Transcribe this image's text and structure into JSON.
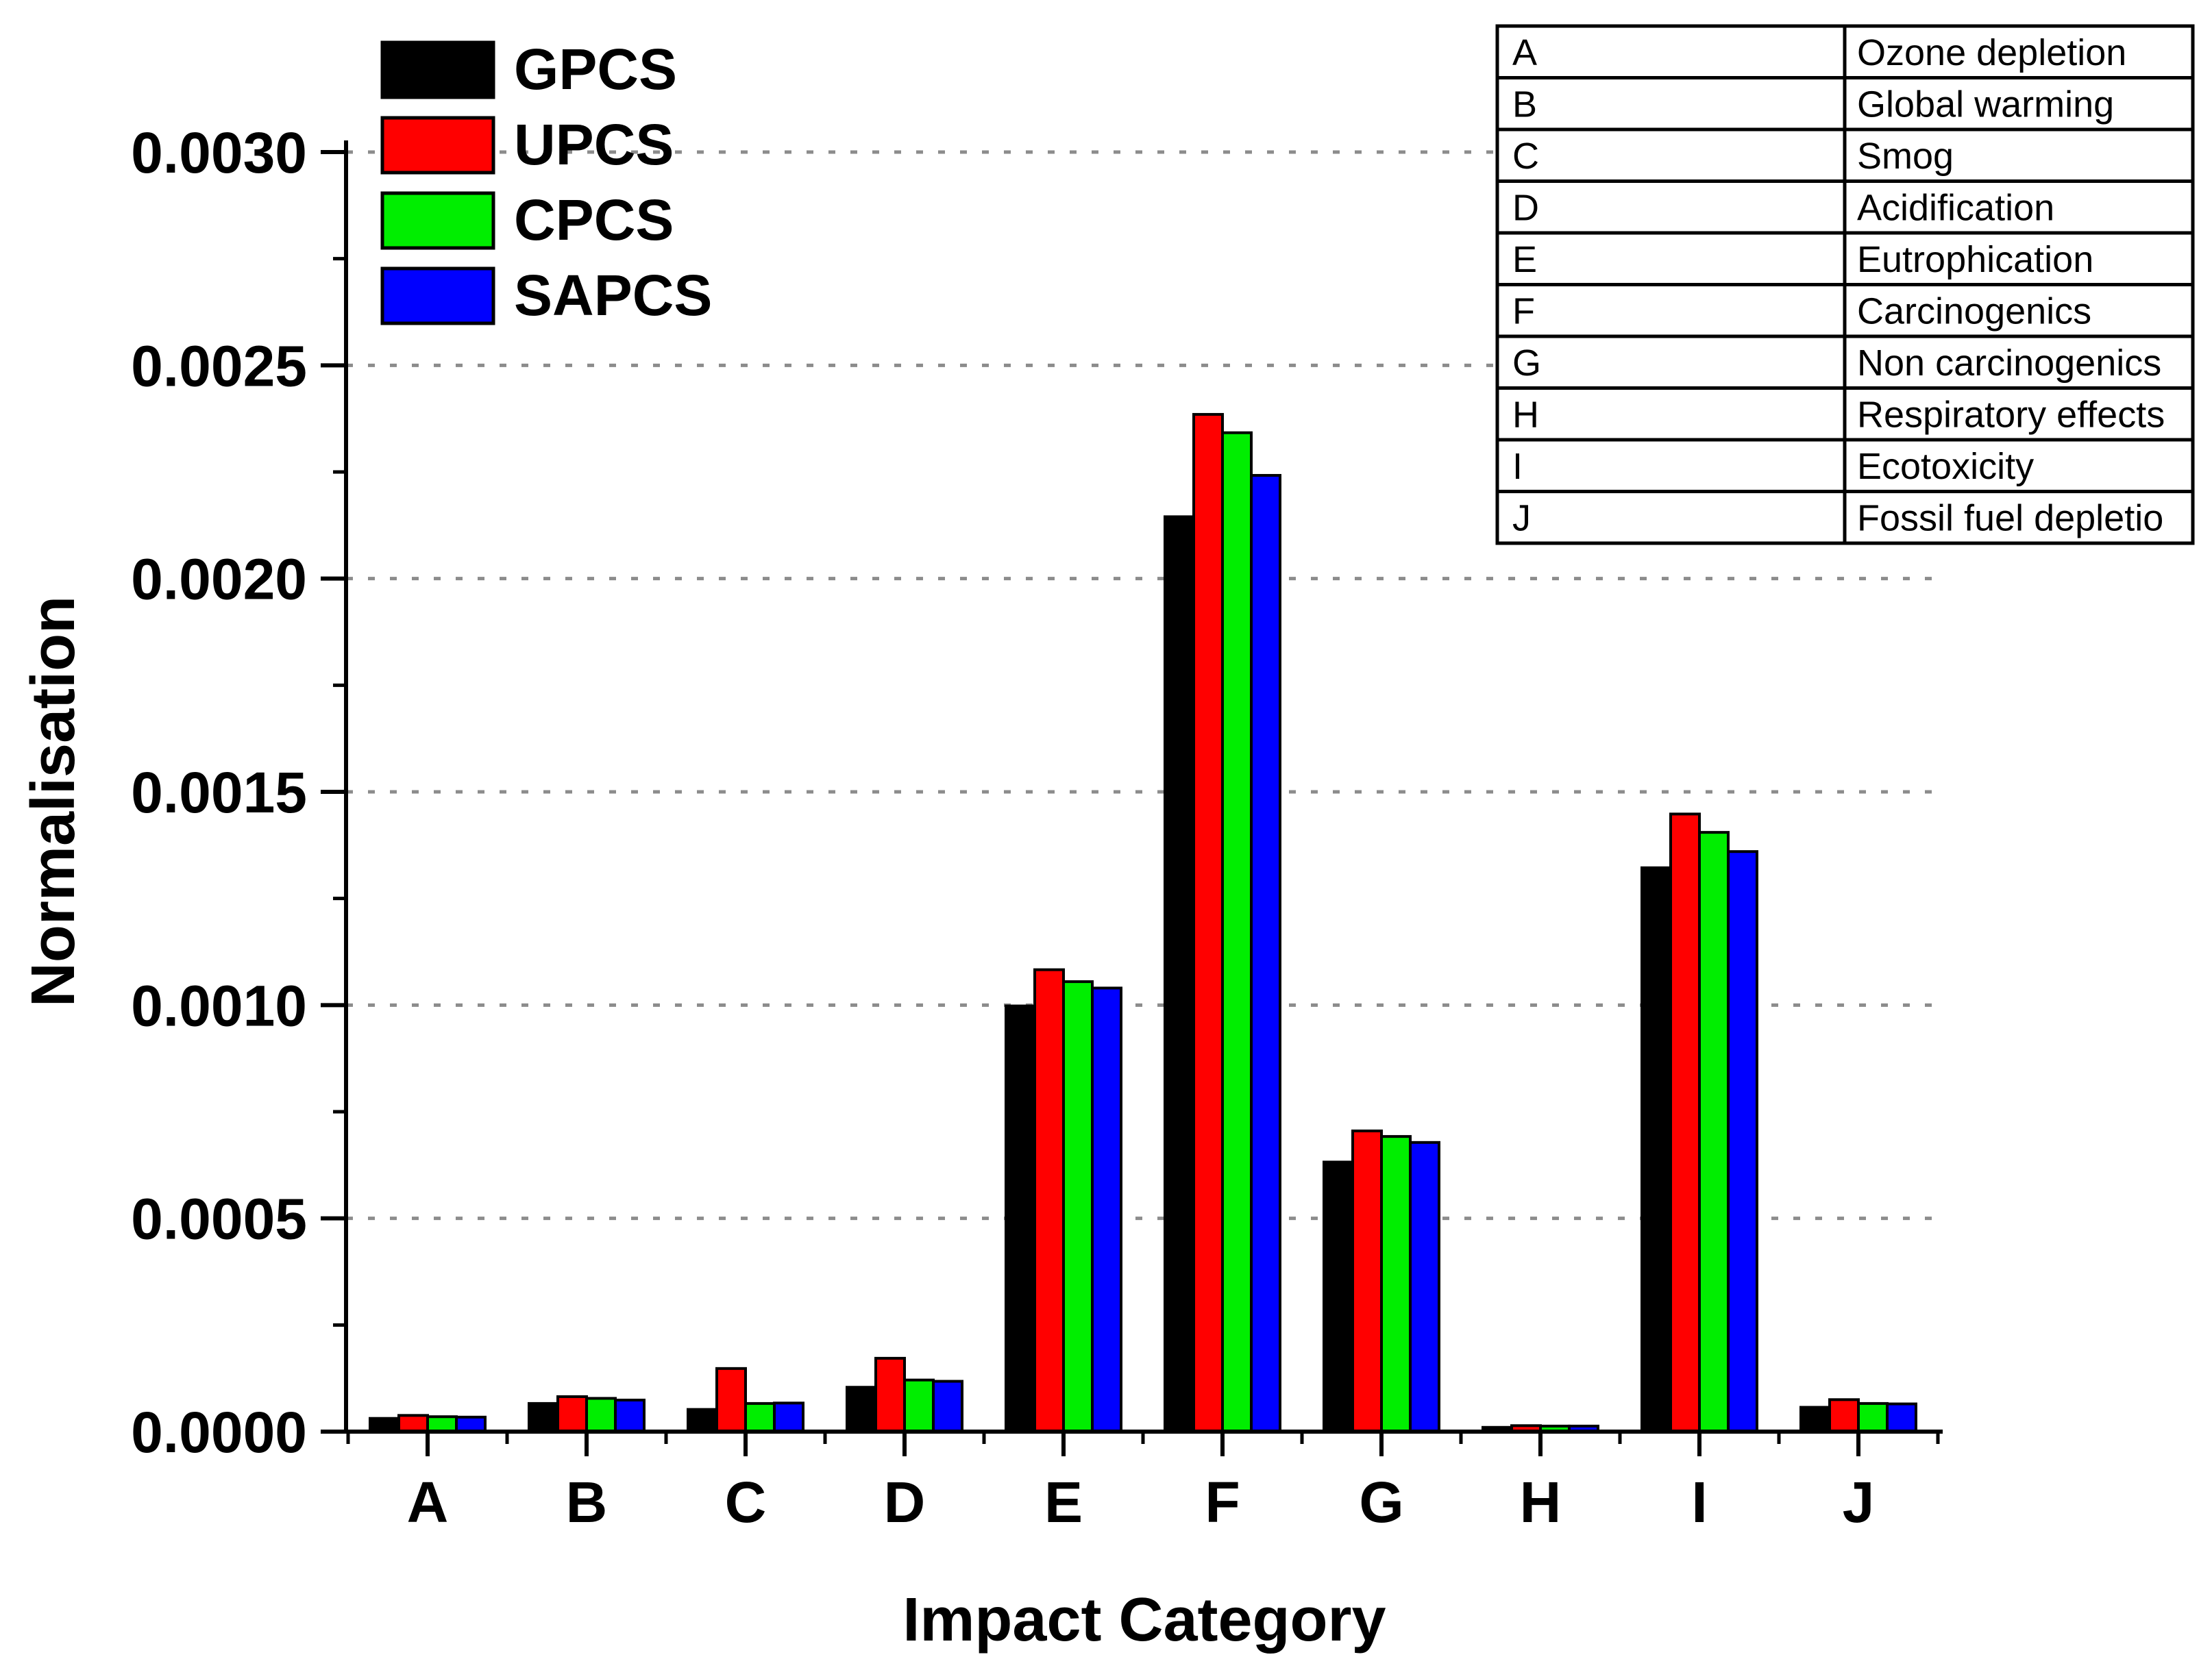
{
  "chart_data": {
    "type": "bar",
    "title": "",
    "xlabel": "Impact Category",
    "ylabel": "Normalisation",
    "ylim": [
      0,
      0.003
    ],
    "yticks": [
      "0.0000",
      "0.0005",
      "0.0010",
      "0.0015",
      "0.0020",
      "0.0025",
      "0.0030"
    ],
    "ytick_values": [
      0,
      0.0005,
      0.001,
      0.0015,
      0.002,
      0.0025,
      0.003
    ],
    "grid": true,
    "legend_position": "top-left",
    "categories": [
      "A",
      "B",
      "C",
      "D",
      "E",
      "F",
      "G",
      "H",
      "I",
      "J"
    ],
    "series": [
      {
        "name": "GPCS",
        "color": "#000000",
        "values": [
          3.1e-05,
          6.6e-05,
          5.2e-05,
          0.000104,
          0.000998,
          0.002145,
          0.000632,
          1e-05,
          0.001322,
          5.7e-05
        ]
      },
      {
        "name": "UPCS",
        "color": "#ff0000",
        "values": [
          3.8e-05,
          8.2e-05,
          0.000148,
          0.000172,
          0.001083,
          0.002385,
          0.000705,
          1.4e-05,
          0.001448,
          7.5e-05
        ]
      },
      {
        "name": "CPCS",
        "color": "#00ee00",
        "values": [
          3.5e-05,
          7.8e-05,
          6.6e-05,
          0.000121,
          0.001055,
          0.002342,
          0.000692,
          1.3e-05,
          0.001405,
          6.6e-05
        ]
      },
      {
        "name": "SAPCS",
        "color": "#0000ff",
        "values": [
          3.4e-05,
          7.4e-05,
          6.7e-05,
          0.000118,
          0.00104,
          0.002242,
          0.000678,
          1.3e-05,
          0.00136,
          6.5e-05
        ]
      }
    ],
    "category_key": [
      {
        "code": "A",
        "name": "Ozone depletion"
      },
      {
        "code": "B",
        "name": "Global warming"
      },
      {
        "code": "C",
        "name": "Smog"
      },
      {
        "code": "D",
        "name": "Acidification"
      },
      {
        "code": "E",
        "name": "Eutrophication"
      },
      {
        "code": "F",
        "name": "Carcinogenics"
      },
      {
        "code": "G",
        "name": "Non carcinogenics"
      },
      {
        "code": "H",
        "name": "Respiratory effects"
      },
      {
        "code": "I",
        "name": "Ecotoxicity"
      },
      {
        "code": "J",
        "name": "Fossil fuel depletio"
      }
    ]
  }
}
